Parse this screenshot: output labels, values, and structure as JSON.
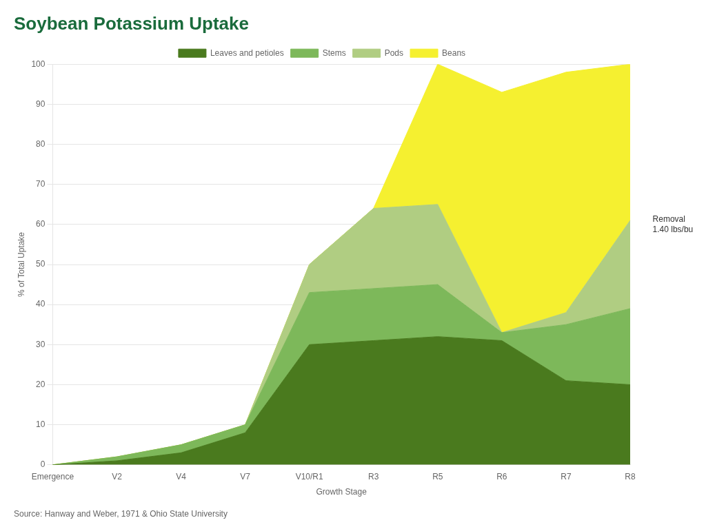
{
  "chart_data": {
    "type": "area",
    "title": "Soybean Potassium Uptake",
    "xlabel": "Growth Stage",
    "ylabel": "% of Total Uptake",
    "categories": [
      "Emergence",
      "V2",
      "V4",
      "V7",
      "V10/R1",
      "R3",
      "R5",
      "R6",
      "R7",
      "R8"
    ],
    "series": [
      {
        "name": "Leaves and petioles",
        "color": "#4a7a1e",
        "values": [
          0,
          1,
          3,
          8,
          30,
          31,
          32,
          31,
          21,
          20
        ]
      },
      {
        "name": "Stems",
        "color": "#7db85a",
        "values": [
          0,
          1,
          2,
          2,
          13,
          13,
          13,
          2,
          14,
          19
        ]
      },
      {
        "name": "Pods",
        "color": "#b0cd82",
        "values": [
          0,
          0,
          0,
          0,
          7,
          20,
          20,
          0,
          3,
          22
        ]
      },
      {
        "name": "Beans",
        "color": "#f5f030",
        "values": [
          0,
          0,
          0,
          0,
          0,
          0,
          35,
          60,
          60,
          39
        ]
      }
    ],
    "stacked": true,
    "ylim": [
      0,
      100
    ],
    "yticks": [
      0,
      10,
      20,
      30,
      40,
      50,
      60,
      70,
      80,
      90,
      100
    ],
    "grid": true,
    "legend": "top",
    "annotations": [
      {
        "text": "Removal\n1.40 lbs/bu",
        "x": 9.35,
        "y": 60
      }
    ],
    "source": "Source: Hanway and Weber, 1971 & Ohio State University"
  }
}
